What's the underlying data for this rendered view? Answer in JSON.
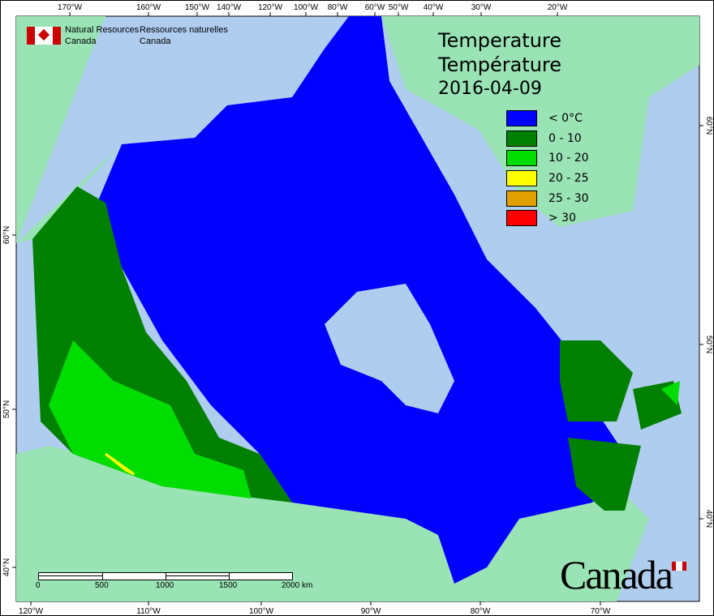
{
  "header": {
    "org_en": [
      "Natural Resources",
      "Canada"
    ],
    "org_fr": [
      "Ressources naturelles",
      "Canada"
    ]
  },
  "title": {
    "en": "Temperature",
    "fr": "Température",
    "date": "2016-04-09"
  },
  "legend": [
    {
      "label": "< 0°C",
      "color": "#0000ff"
    },
    {
      "label": "0 - 10",
      "color": "#008000"
    },
    {
      "label": "10 - 20",
      "color": "#00dd00"
    },
    {
      "label": "20 - 25",
      "color": "#ffff00"
    },
    {
      "label": "25 - 30",
      "color": "#e0a000"
    },
    {
      "label": "> 30",
      "color": "#ff0000"
    }
  ],
  "axes": {
    "top": [
      "170°W",
      "160°W",
      "150°W",
      "140°W",
      "120°W",
      "100°W",
      "80°W",
      "60°W",
      "50°W",
      "40°W",
      "30°W",
      "20°W"
    ],
    "bottom": [
      "120°W",
      "110°W",
      "100°W",
      "90°W",
      "80°W",
      "70°W"
    ],
    "left": [
      "60°N",
      "50°N",
      "40°N"
    ],
    "right": [
      "60°N",
      "50°N",
      "40°N"
    ]
  },
  "scale_bar": {
    "labels": [
      "0",
      "500",
      "1000",
      "1500",
      "2000 km"
    ]
  },
  "wordmark": "Canada",
  "colors": {
    "ocean": "#afcdef",
    "land": "#99e3b4",
    "below_zero": "#0000ff"
  }
}
